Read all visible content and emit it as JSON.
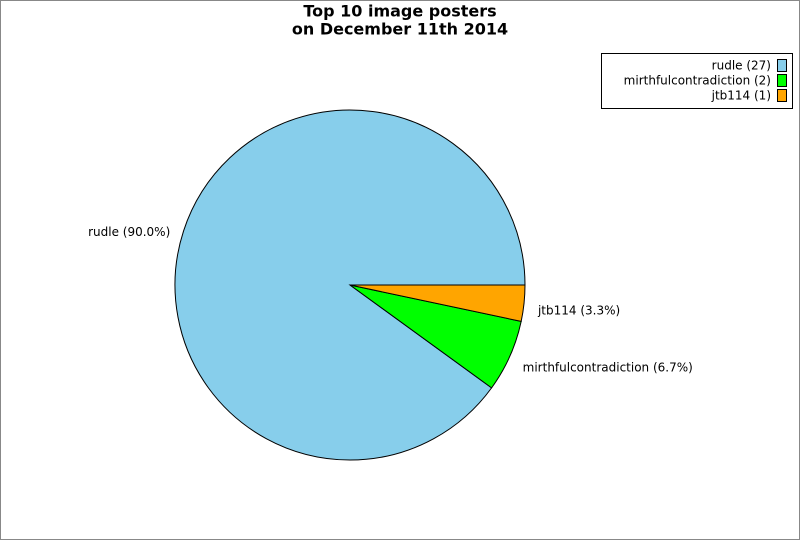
{
  "chart_data": {
    "type": "pie",
    "title": [
      "Top 10 image posters",
      "on December 11th 2014"
    ],
    "categories": [
      "rudle",
      "mirthfulcontradiction",
      "jtb114"
    ],
    "values": [
      27,
      2,
      1
    ],
    "colors": [
      "#87ceeb",
      "#00ff00",
      "#ffa500"
    ],
    "legend_labels": [
      "rudle (27)",
      "mirthfulcontradiction (2)",
      "jtb114 (1)"
    ],
    "slice_labels": [
      "rudle (90.0%)",
      "mirthfulcontradiction (6.7%)",
      "jtb114 (3.3%)"
    ],
    "legend": "upper right"
  }
}
